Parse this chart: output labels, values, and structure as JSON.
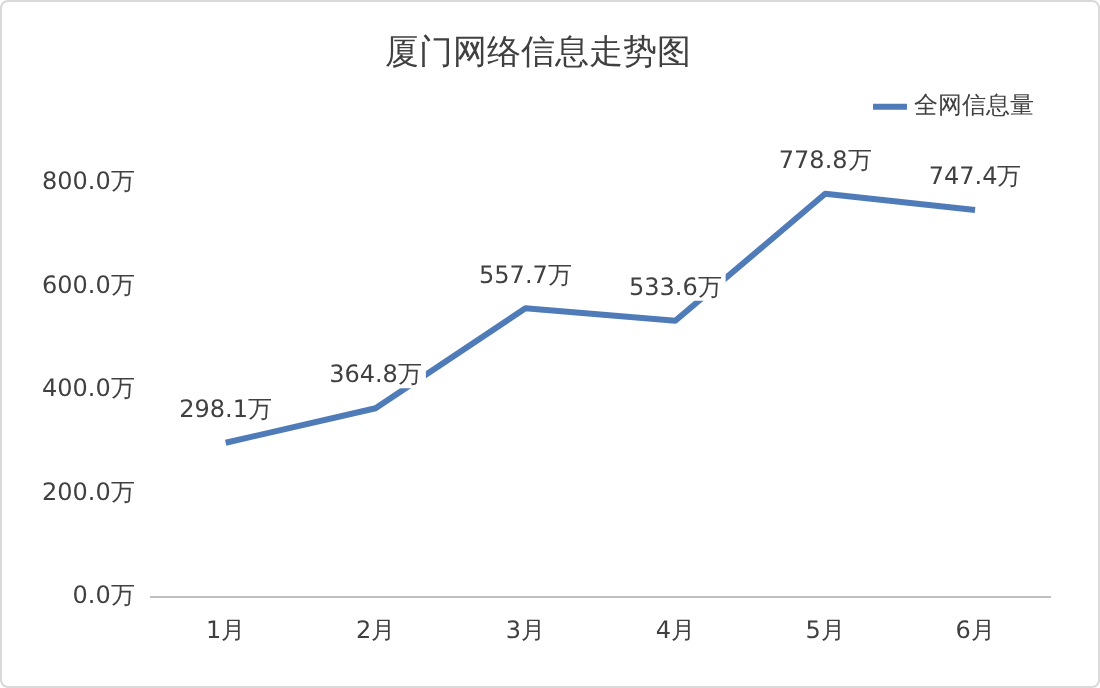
{
  "chart_data": {
    "type": "line",
    "title": "厦门网络信息走势图",
    "categories": [
      "1月",
      "2月",
      "3月",
      "4月",
      "5月",
      "6月"
    ],
    "series": [
      {
        "name": "全网信息量",
        "color": "#4f7bb8",
        "values": [
          298.1,
          364.8,
          557.7,
          533.6,
          778.8,
          747.4
        ],
        "value_labels": [
          "298.1万",
          "364.8万",
          "557.7万",
          "533.6万",
          "778.8万",
          "747.4万"
        ]
      }
    ],
    "ylim": [
      0,
      800
    ],
    "yticks": [
      {
        "value": 0,
        "label": "0.0万"
      },
      {
        "value": 200,
        "label": "200.0万"
      },
      {
        "value": 400,
        "label": "400.0万"
      },
      {
        "value": 600,
        "label": "600.0万"
      },
      {
        "value": 800,
        "label": "800.0万"
      }
    ],
    "grid": false,
    "legend": "top right",
    "marker": "none",
    "line_style": "solid"
  }
}
